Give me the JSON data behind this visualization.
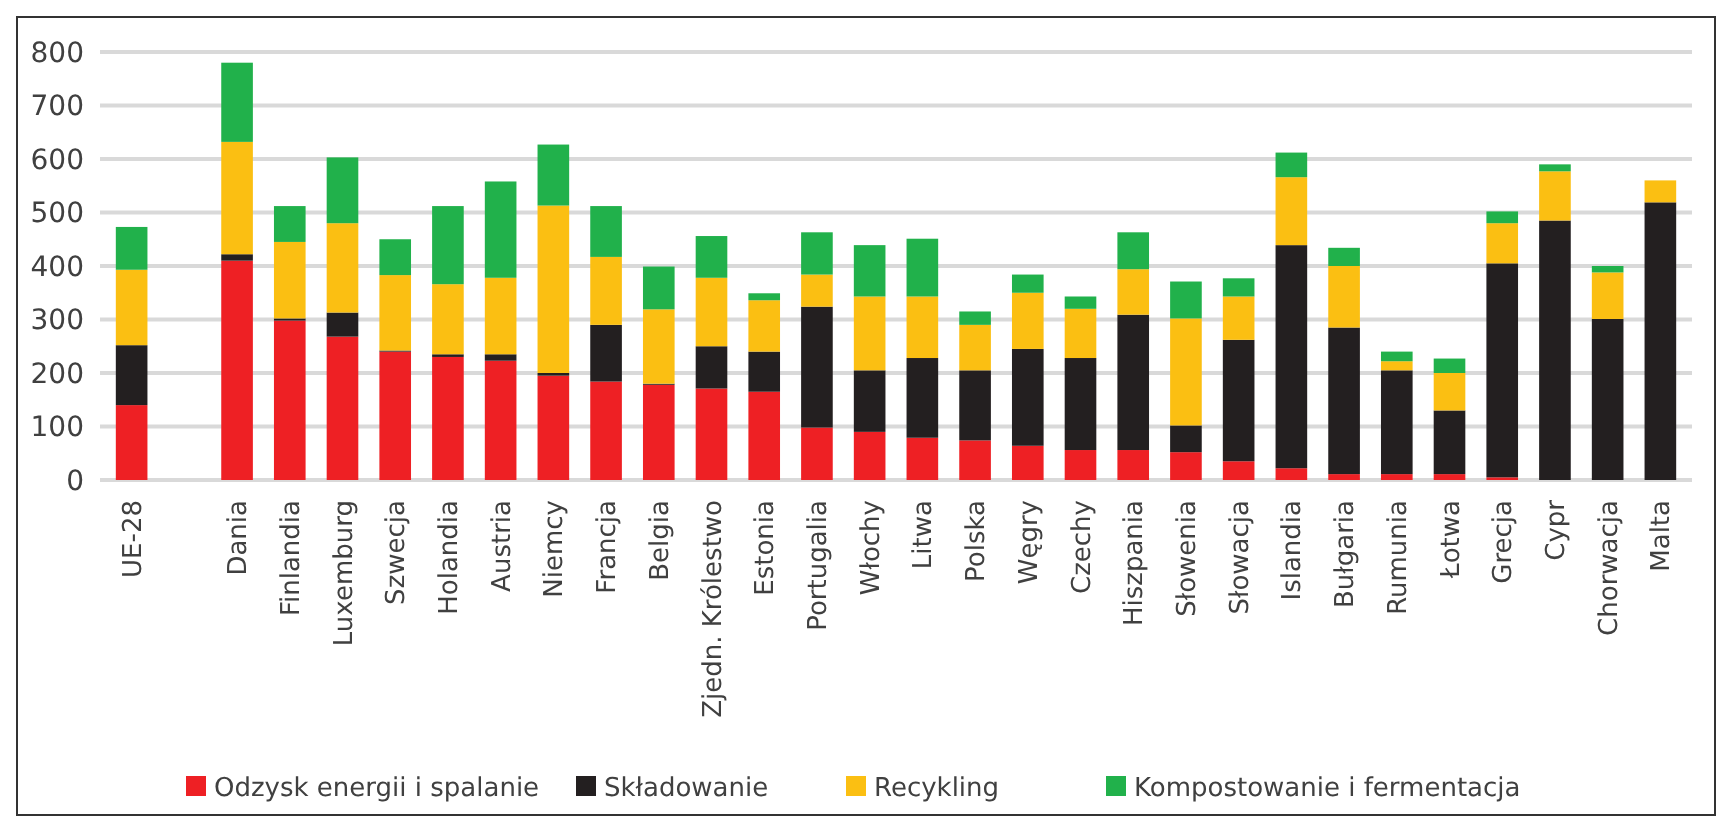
{
  "chart_data": {
    "type": "bar",
    "stacked": true,
    "categories": [
      "UE-28",
      null,
      "Dania",
      "Finlandia",
      "Luxemburg",
      "Szwecja",
      "Holandia",
      "Austria",
      "Niemcy",
      "Francja",
      "Belgia",
      "Zjedn. Królestwo",
      "Estonia",
      "Portugalia",
      "Włochy",
      "Litwa",
      "Polska",
      "Węgry",
      "Czechy",
      "Hiszpania",
      "Słowenia",
      "Słowacja",
      "Islandia",
      "Bułgaria",
      "Rumunia",
      "Łotwa",
      "Grecja",
      "Cypr",
      "Chorwacja",
      "Malta"
    ],
    "series": [
      {
        "name": "Odzysk energii i spalanie",
        "color": "#ee2024",
        "values": [
          140,
          null,
          410,
          298,
          268,
          240,
          230,
          223,
          195,
          184,
          178,
          171,
          165,
          98,
          90,
          79,
          74,
          64,
          56,
          56,
          52,
          35,
          22,
          11,
          11,
          11,
          5,
          0,
          0,
          0
        ]
      },
      {
        "name": "Składowanie",
        "color": "#231f20",
        "values": [
          112,
          null,
          12,
          4,
          45,
          2,
          5,
          12,
          5,
          106,
          2,
          79,
          75,
          226,
          115,
          149,
          131,
          181,
          172,
          253,
          50,
          227,
          417,
          274,
          194,
          119,
          400,
          485,
          301,
          519
        ]
      },
      {
        "name": "Recykling",
        "color": "#fbbf12",
        "values": [
          141,
          null,
          210,
          143,
          167,
          141,
          131,
          143,
          313,
          127,
          139,
          128,
          96,
          60,
          138,
          115,
          85,
          105,
          92,
          85,
          200,
          81,
          127,
          115,
          17,
          70,
          75,
          92,
          87,
          41
        ]
      },
      {
        "name": "Kompostowanie i fermentacja",
        "color": "#21b14b",
        "values": [
          80,
          null,
          148,
          67,
          123,
          67,
          146,
          180,
          114,
          95,
          80,
          78,
          13,
          79,
          96,
          108,
          25,
          34,
          23,
          69,
          69,
          34,
          46,
          34,
          18,
          27,
          22,
          13,
          12,
          0
        ]
      }
    ],
    "ylim": [
      0,
      800
    ],
    "yticks": [
      0,
      100,
      200,
      300,
      400,
      500,
      600,
      700,
      800
    ],
    "grid": "y",
    "legend": "bottom"
  }
}
